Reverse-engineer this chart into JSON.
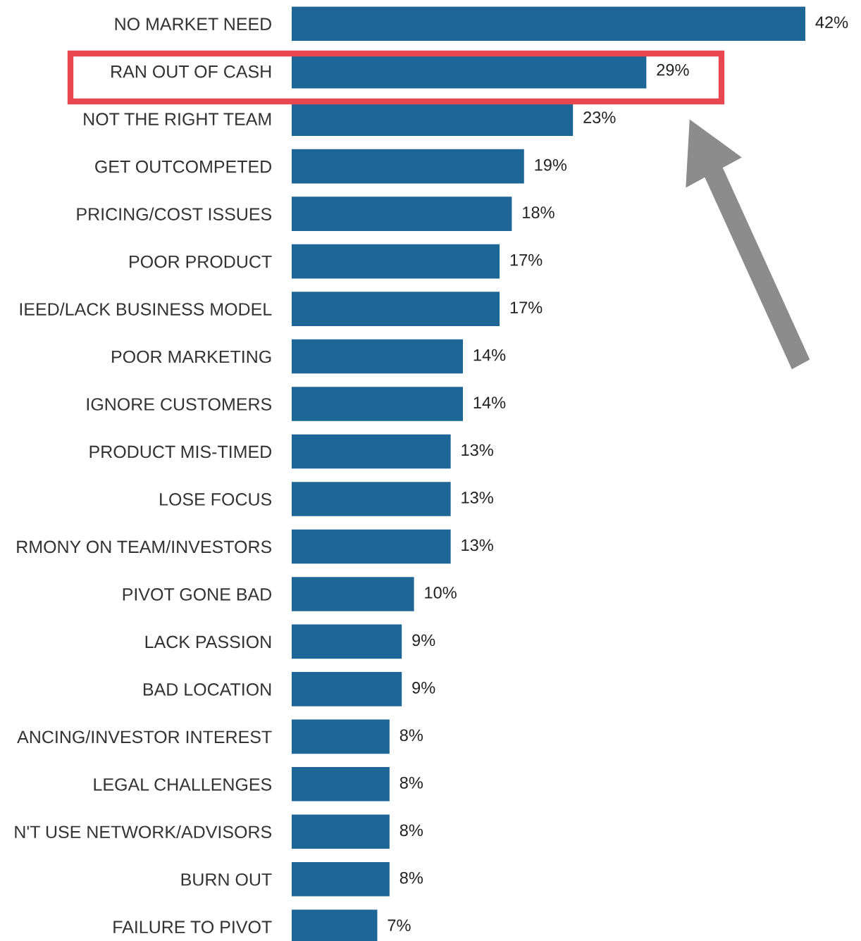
{
  "chart_data": {
    "type": "bar",
    "orientation": "horizontal",
    "data_labels": true,
    "grid": false,
    "legend": false,
    "categories": [
      "NO MARKET NEED",
      "RAN OUT OF CASH",
      "NOT THE RIGHT TEAM",
      "GET OUTCOMPETED",
      "PRICING/COST ISSUES",
      "POOR PRODUCT",
      "IEED/LACK BUSINESS MODEL",
      "POOR MARKETING",
      "IGNORE CUSTOMERS",
      "PRODUCT MIS-TIMED",
      "LOSE FOCUS",
      "RMONY ON TEAM/INVESTORS",
      "PIVOT GONE BAD",
      "LACK PASSION",
      "BAD LOCATION",
      "ANCING/INVESTOR INTEREST",
      "LEGAL CHALLENGES",
      "N'T USE NETWORK/ADVISORS",
      "BURN OUT",
      "FAILURE TO PIVOT"
    ],
    "values": [
      42,
      29,
      23,
      19,
      18,
      17,
      17,
      14,
      14,
      13,
      13,
      13,
      10,
      9,
      9,
      8,
      8,
      8,
      8,
      7
    ],
    "value_labels": [
      "42%",
      "29%",
      "23%",
      "19%",
      "18%",
      "17%",
      "17%",
      "14%",
      "14%",
      "13%",
      "13%",
      "13%",
      "10%",
      "9%",
      "9%",
      "8%",
      "8%",
      "8%",
      "8%",
      "7%"
    ],
    "color": "#1e6696"
  }
}
